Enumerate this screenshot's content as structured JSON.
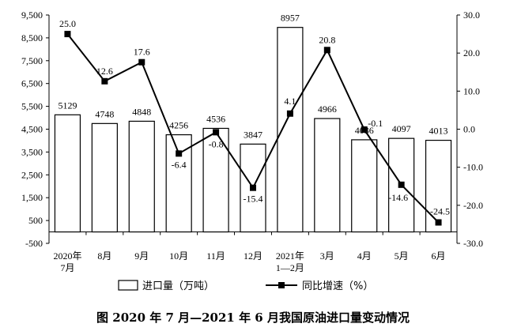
{
  "chart_data": {
    "type": "bar",
    "title": "图 2020 年 7 月—2021 年 6 月我国原油进口量变动情况",
    "categories": [
      [
        "2020年",
        "7月"
      ],
      [
        "8月"
      ],
      [
        "9月"
      ],
      [
        "10月"
      ],
      [
        "11月"
      ],
      [
        "12月"
      ],
      [
        "2021年",
        "1—2月"
      ],
      [
        "3月"
      ],
      [
        "4月"
      ],
      [
        "5月"
      ],
      [
        "6月"
      ]
    ],
    "series": [
      {
        "name": "进口量（万吨）",
        "type": "bar",
        "axis": "left",
        "values": [
          5129,
          4748,
          4848,
          4256,
          4536,
          3847,
          8957,
          4966,
          4036,
          4097,
          4013
        ],
        "labels": [
          "5129",
          "4748",
          "4848",
          "4256",
          "4536",
          "3847",
          "8957",
          "4966",
          "4036",
          "4097",
          "4013"
        ]
      },
      {
        "name": "同比增速（%）",
        "type": "line",
        "axis": "right",
        "values": [
          25.0,
          12.6,
          17.6,
          -6.4,
          -0.8,
          -15.4,
          4.1,
          20.8,
          -0.1,
          -14.6,
          -24.5
        ],
        "labels": [
          "25.0",
          "12.6",
          "17.6",
          "-6.4",
          "-0.8",
          "-15.4",
          "4.1",
          "20.8",
          "-0.1",
          "-14.6",
          "-24.5"
        ]
      }
    ],
    "y_left": {
      "lim": [
        -500,
        9500
      ],
      "ticks": [
        -500,
        500,
        1500,
        2500,
        3500,
        4500,
        5500,
        6500,
        7500,
        8500,
        9500
      ],
      "tick_labels": [
        "-500",
        "500",
        "1,500",
        "2,500",
        "3,500",
        "4,500",
        "5,500",
        "6,500",
        "7,500",
        "8,500",
        "9,500"
      ]
    },
    "y_right": {
      "lim": [
        -30,
        30
      ],
      "ticks": [
        -30,
        -20,
        -10,
        0,
        10,
        20,
        30
      ],
      "tick_labels": [
        "-30.0",
        "-20.0",
        "-10.0",
        "0.0",
        "10.0",
        "20.0",
        "30.0"
      ]
    },
    "legend_position": "bottom",
    "grid": false,
    "colors": {
      "bar_fill": "#ffffff",
      "bar_stroke": "#000000",
      "line": "#000000",
      "marker": "#000000"
    }
  }
}
